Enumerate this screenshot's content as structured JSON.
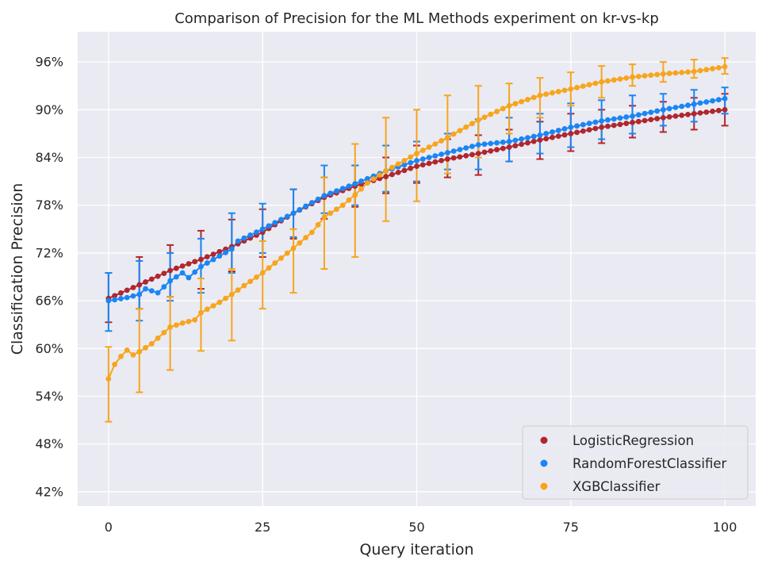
{
  "chart_data": {
    "type": "line",
    "title": "Comparison of Precision for the ML Methods experiment on kr-vs-kp",
    "xlabel": "Query iteration",
    "ylabel": "Classification Precision",
    "xlim": [
      -5,
      105
    ],
    "ylim": [
      40.2,
      99.8
    ],
    "xticks": [
      0,
      25,
      50,
      75,
      100
    ],
    "xtick_labels": [
      "0",
      "25",
      "50",
      "75",
      "100"
    ],
    "yticks": [
      42,
      48,
      54,
      60,
      66,
      72,
      78,
      84,
      90,
      96
    ],
    "ytick_labels": [
      "42%",
      "48%",
      "54%",
      "60%",
      "66%",
      "72%",
      "78%",
      "84%",
      "90%",
      "96%"
    ],
    "grid": true,
    "legend_position": "lower-right",
    "series": [
      {
        "name": "LogisticRegression",
        "color": "#b0272e",
        "anchors": [
          [
            0,
            66.3
          ],
          [
            5,
            68.0
          ],
          [
            10,
            69.8
          ],
          [
            15,
            71.2
          ],
          [
            20,
            72.8
          ],
          [
            25,
            74.6
          ],
          [
            30,
            77.0
          ],
          [
            35,
            79.0
          ],
          [
            40,
            80.4
          ],
          [
            45,
            81.6
          ],
          [
            50,
            82.9
          ],
          [
            55,
            83.8
          ],
          [
            60,
            84.5
          ],
          [
            65,
            85.3
          ],
          [
            70,
            86.2
          ],
          [
            75,
            87.0
          ],
          [
            80,
            87.8
          ],
          [
            85,
            88.4
          ],
          [
            90,
            89.0
          ],
          [
            95,
            89.5
          ],
          [
            100,
            90.0
          ]
        ],
        "error_bars": [
          [
            0,
            63.3,
            69.5
          ],
          [
            5,
            65.0,
            71.5
          ],
          [
            10,
            66.5,
            73.0
          ],
          [
            15,
            67.5,
            74.8
          ],
          [
            20,
            69.7,
            76.2
          ],
          [
            25,
            71.5,
            77.5
          ],
          [
            30,
            73.8,
            80.0
          ],
          [
            35,
            76.3,
            81.5
          ],
          [
            40,
            77.8,
            83.0
          ],
          [
            45,
            79.5,
            84.0
          ],
          [
            50,
            80.8,
            85.5
          ],
          [
            55,
            81.5,
            86.3
          ],
          [
            60,
            81.8,
            86.8
          ],
          [
            65,
            83.5,
            87.5
          ],
          [
            70,
            83.8,
            88.5
          ],
          [
            75,
            84.8,
            89.5
          ],
          [
            80,
            85.8,
            90.0
          ],
          [
            85,
            86.5,
            90.5
          ],
          [
            90,
            87.2,
            91.0
          ],
          [
            95,
            87.5,
            91.5
          ],
          [
            100,
            88.0,
            92.0
          ]
        ]
      },
      {
        "name": "RandomForestClassifier",
        "color": "#1a86f4",
        "anchors": [
          [
            0,
            66.0
          ],
          [
            3,
            66.4
          ],
          [
            5,
            66.8
          ],
          [
            6,
            67.5
          ],
          [
            8,
            67.0
          ],
          [
            10,
            68.5
          ],
          [
            12,
            69.5
          ],
          [
            13,
            68.9
          ],
          [
            15,
            70.3
          ],
          [
            20,
            72.5
          ],
          [
            21,
            73.5
          ],
          [
            25,
            75.0
          ],
          [
            30,
            77.0
          ],
          [
            35,
            79.2
          ],
          [
            40,
            80.7
          ],
          [
            45,
            82.3
          ],
          [
            50,
            83.6
          ],
          [
            55,
            84.6
          ],
          [
            60,
            85.6
          ],
          [
            65,
            86.0
          ],
          [
            70,
            86.8
          ],
          [
            75,
            87.8
          ],
          [
            80,
            88.6
          ],
          [
            85,
            89.2
          ],
          [
            90,
            90.0
          ],
          [
            95,
            90.7
          ],
          [
            100,
            91.4
          ]
        ],
        "error_bars": [
          [
            0,
            62.2,
            69.5
          ],
          [
            5,
            63.5,
            71.0
          ],
          [
            10,
            66.0,
            72.0
          ],
          [
            15,
            67.0,
            73.8
          ],
          [
            20,
            69.5,
            77.0
          ],
          [
            25,
            72.0,
            78.2
          ],
          [
            30,
            74.0,
            80.0
          ],
          [
            35,
            77.0,
            83.0
          ],
          [
            40,
            78.0,
            83.0
          ],
          [
            45,
            79.7,
            85.5
          ],
          [
            50,
            81.0,
            86.0
          ],
          [
            55,
            82.5,
            87.0
          ],
          [
            60,
            82.5,
            88.8
          ],
          [
            65,
            83.5,
            89.0
          ],
          [
            70,
            84.5,
            89.5
          ],
          [
            75,
            85.3,
            90.8
          ],
          [
            80,
            86.3,
            91.2
          ],
          [
            85,
            87.0,
            91.8
          ],
          [
            90,
            88.0,
            92.0
          ],
          [
            95,
            88.5,
            92.5
          ],
          [
            100,
            89.5,
            92.8
          ]
        ]
      },
      {
        "name": "XGBClassifier",
        "color": "#f7a51d",
        "anchors": [
          [
            0,
            56.2
          ],
          [
            1,
            58.0
          ],
          [
            2,
            59.0
          ],
          [
            3,
            59.8
          ],
          [
            4,
            59.2
          ],
          [
            5,
            59.6
          ],
          [
            7,
            60.6
          ],
          [
            10,
            62.7
          ],
          [
            12,
            63.2
          ],
          [
            14,
            63.6
          ],
          [
            15,
            64.5
          ],
          [
            18,
            65.8
          ],
          [
            20,
            66.8
          ],
          [
            22,
            67.9
          ],
          [
            25,
            69.5
          ],
          [
            30,
            72.6
          ],
          [
            33,
            74.6
          ],
          [
            35,
            76.5
          ],
          [
            38,
            78.0
          ],
          [
            40,
            79.3
          ],
          [
            42,
            80.8
          ],
          [
            45,
            82.3
          ],
          [
            50,
            84.5
          ],
          [
            55,
            86.5
          ],
          [
            60,
            88.7
          ],
          [
            65,
            90.5
          ],
          [
            70,
            91.8
          ],
          [
            75,
            92.6
          ],
          [
            80,
            93.5
          ],
          [
            85,
            94.1
          ],
          [
            90,
            94.5
          ],
          [
            95,
            94.8
          ],
          [
            100,
            95.4
          ]
        ],
        "error_bars": [
          [
            0,
            50.8,
            60.2
          ],
          [
            5,
            54.5,
            65.0
          ],
          [
            10,
            57.3,
            66.5
          ],
          [
            15,
            59.7,
            68.8
          ],
          [
            20,
            61.0,
            70.0
          ],
          [
            25,
            65.0,
            73.5
          ],
          [
            30,
            67.0,
            75.0
          ],
          [
            35,
            70.0,
            81.5
          ],
          [
            40,
            71.5,
            85.7
          ],
          [
            45,
            76.0,
            89.0
          ],
          [
            50,
            78.5,
            90.0
          ],
          [
            55,
            82.0,
            91.8
          ],
          [
            60,
            84.0,
            93.0
          ],
          [
            65,
            87.0,
            93.3
          ],
          [
            70,
            89.0,
            94.0
          ],
          [
            75,
            90.5,
            94.7
          ],
          [
            80,
            91.5,
            95.5
          ],
          [
            85,
            93.0,
            95.7
          ],
          [
            90,
            93.5,
            96.0
          ],
          [
            95,
            94.0,
            96.3
          ],
          [
            100,
            94.5,
            96.5
          ]
        ]
      }
    ]
  }
}
